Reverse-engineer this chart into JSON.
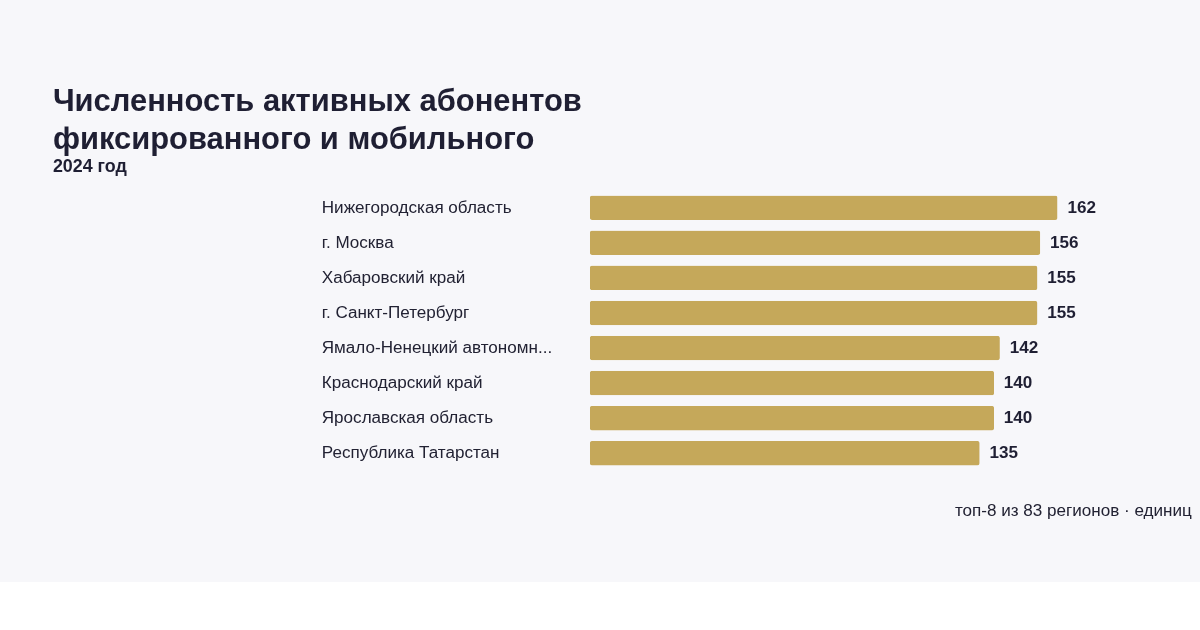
{
  "chart_data": {
    "type": "bar",
    "orientation": "horizontal",
    "title": [
      "Численность активных абонентов",
      "фиксированного и мобильного"
    ],
    "subtitle": "2024 год",
    "categories": [
      "Нижегородская область",
      "г. Москва",
      "Хабаровский край",
      "г. Санкт-Петербург",
      "Ямало-Ненецкий автономн...",
      "Краснодарский край",
      "Ярославская область",
      "Республика Татарстан"
    ],
    "values": [
      162,
      156,
      155,
      155,
      142,
      140,
      140,
      135
    ],
    "color": "#c5a85a",
    "data_labels": true,
    "annotations": [
      "топ-8 из 83 регионов · единиц"
    ]
  }
}
